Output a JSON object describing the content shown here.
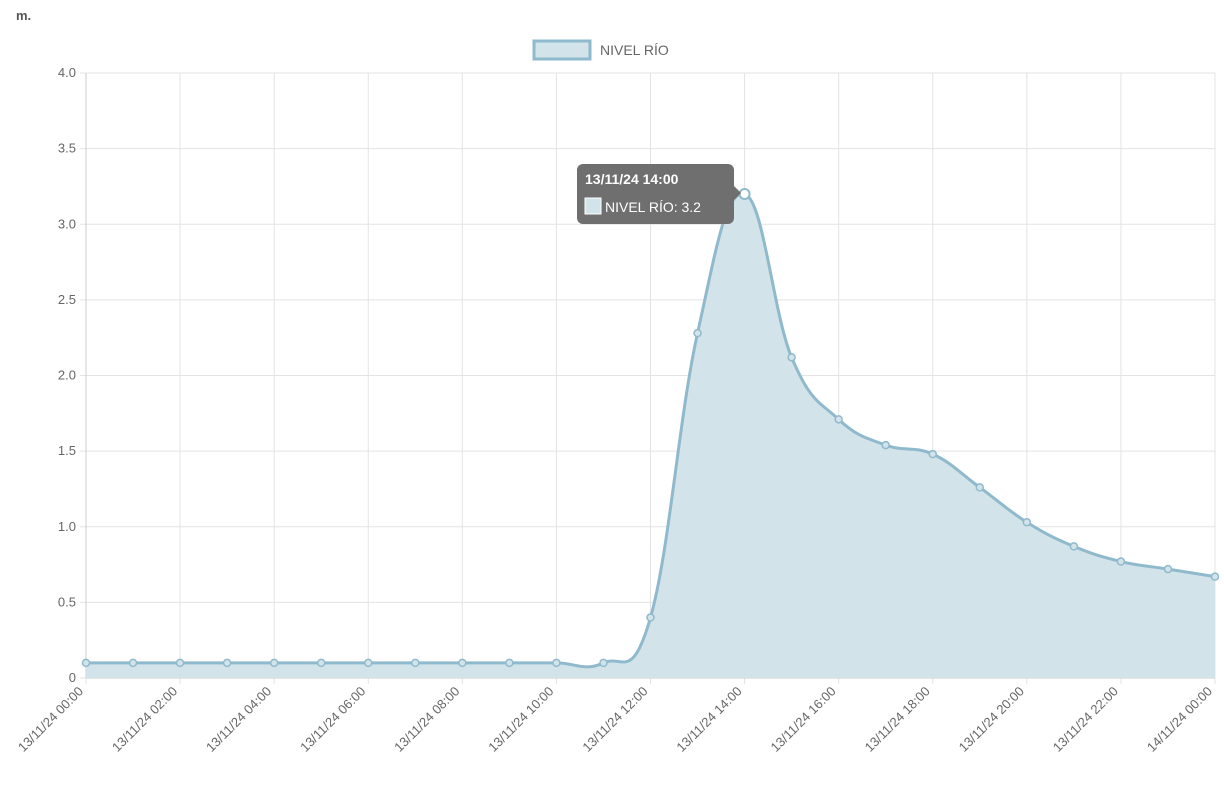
{
  "unit_label": "m.",
  "colors": {
    "line": "#8fb9cc",
    "fill": "#d3e3ea",
    "grid": "#e3e3e3",
    "axis": "#cccccc",
    "tick_text": "#666666",
    "tooltip_bg": "#6f6f6f",
    "tooltip_text": "#ffffff"
  },
  "tooltip": {
    "title": "13/11/24 14:00",
    "label": "NIVEL RÍO: 3.2",
    "point_index": 14
  },
  "chart_data": {
    "type": "area",
    "title": "",
    "xlabel": "",
    "ylabel": "m.",
    "ylim": [
      0,
      4.0
    ],
    "yticks": [
      "0",
      "0.5",
      "1.0",
      "1.5",
      "2.0",
      "2.5",
      "3.0",
      "3.5",
      "4.0"
    ],
    "ytick_values": [
      0,
      0.5,
      1.0,
      1.5,
      2.0,
      2.5,
      3.0,
      3.5,
      4.0
    ],
    "grid": true,
    "legend_position": "top-center",
    "categories": [
      "13/11/24 00:00",
      "13/11/24 01:00",
      "13/11/24 02:00",
      "13/11/24 03:00",
      "13/11/24 04:00",
      "13/11/24 05:00",
      "13/11/24 06:00",
      "13/11/24 07:00",
      "13/11/24 08:00",
      "13/11/24 09:00",
      "13/11/24 10:00",
      "13/11/24 11:00",
      "13/11/24 12:00",
      "13/11/24 13:00",
      "13/11/24 14:00",
      "13/11/24 15:00",
      "13/11/24 16:00",
      "13/11/24 17:00",
      "13/11/24 18:00",
      "13/11/24 19:00",
      "13/11/24 20:00",
      "13/11/24 21:00",
      "13/11/24 22:00",
      "13/11/24 23:00",
      "14/11/24 00:00"
    ],
    "xtick_labels": [
      "13/11/24 00:00",
      "13/11/24 02:00",
      "13/11/24 04:00",
      "13/11/24 06:00",
      "13/11/24 08:00",
      "13/11/24 10:00",
      "13/11/24 12:00",
      "13/11/24 14:00",
      "13/11/24 16:00",
      "13/11/24 18:00",
      "13/11/24 20:00",
      "13/11/24 22:00",
      "14/11/24 00:00"
    ],
    "xtick_indices": [
      0,
      2,
      4,
      6,
      8,
      10,
      12,
      14,
      16,
      18,
      20,
      22,
      24
    ],
    "series": [
      {
        "name": "NIVEL RÍO",
        "values": [
          0.1,
          0.1,
          0.1,
          0.1,
          0.1,
          0.1,
          0.1,
          0.1,
          0.1,
          0.1,
          0.1,
          0.1,
          0.4,
          2.28,
          3.2,
          2.12,
          1.71,
          1.54,
          1.48,
          1.26,
          1.03,
          0.87,
          0.77,
          0.72,
          0.67
        ]
      }
    ]
  }
}
